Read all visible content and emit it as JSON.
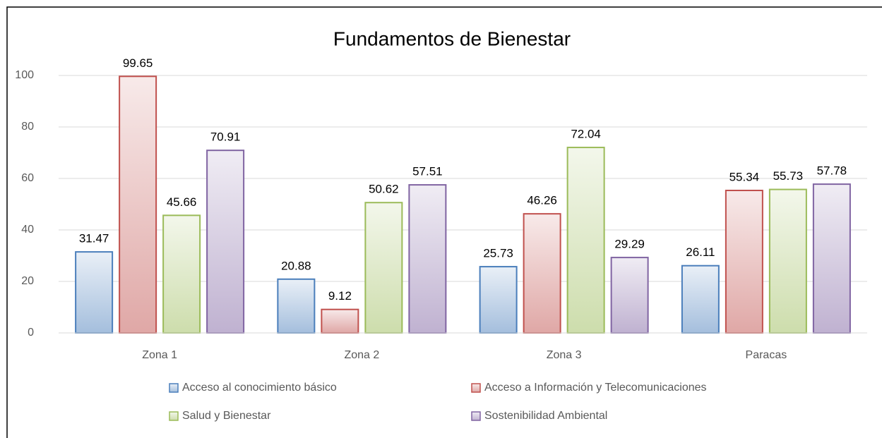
{
  "chart_data": {
    "type": "bar",
    "title": "Fundamentos de Bienestar",
    "categories": [
      "Zona 1",
      "Zona 2",
      "Zona 3",
      "Paracas"
    ],
    "series": [
      {
        "name": "Acceso al conocimiento básico",
        "color": "#4a7ebb",
        "values": [
          31.47,
          20.88,
          25.73,
          26.11
        ]
      },
      {
        "name": "Acceso a Información y Telecomunicaciones",
        "color": "#c0504d",
        "values": [
          99.65,
          9.12,
          46.26,
          55.34
        ]
      },
      {
        "name": "Salud y Bienestar",
        "color": "#9bbb59",
        "values": [
          45.66,
          50.62,
          72.04,
          55.73
        ]
      },
      {
        "name": "Sostenibilidad Ambiental",
        "color": "#8064a2",
        "values": [
          70.91,
          57.51,
          29.29,
          57.78
        ]
      }
    ],
    "ylim": [
      0,
      100
    ],
    "yticks": [
      0,
      20,
      40,
      60,
      80,
      100
    ],
    "grid": true
  }
}
